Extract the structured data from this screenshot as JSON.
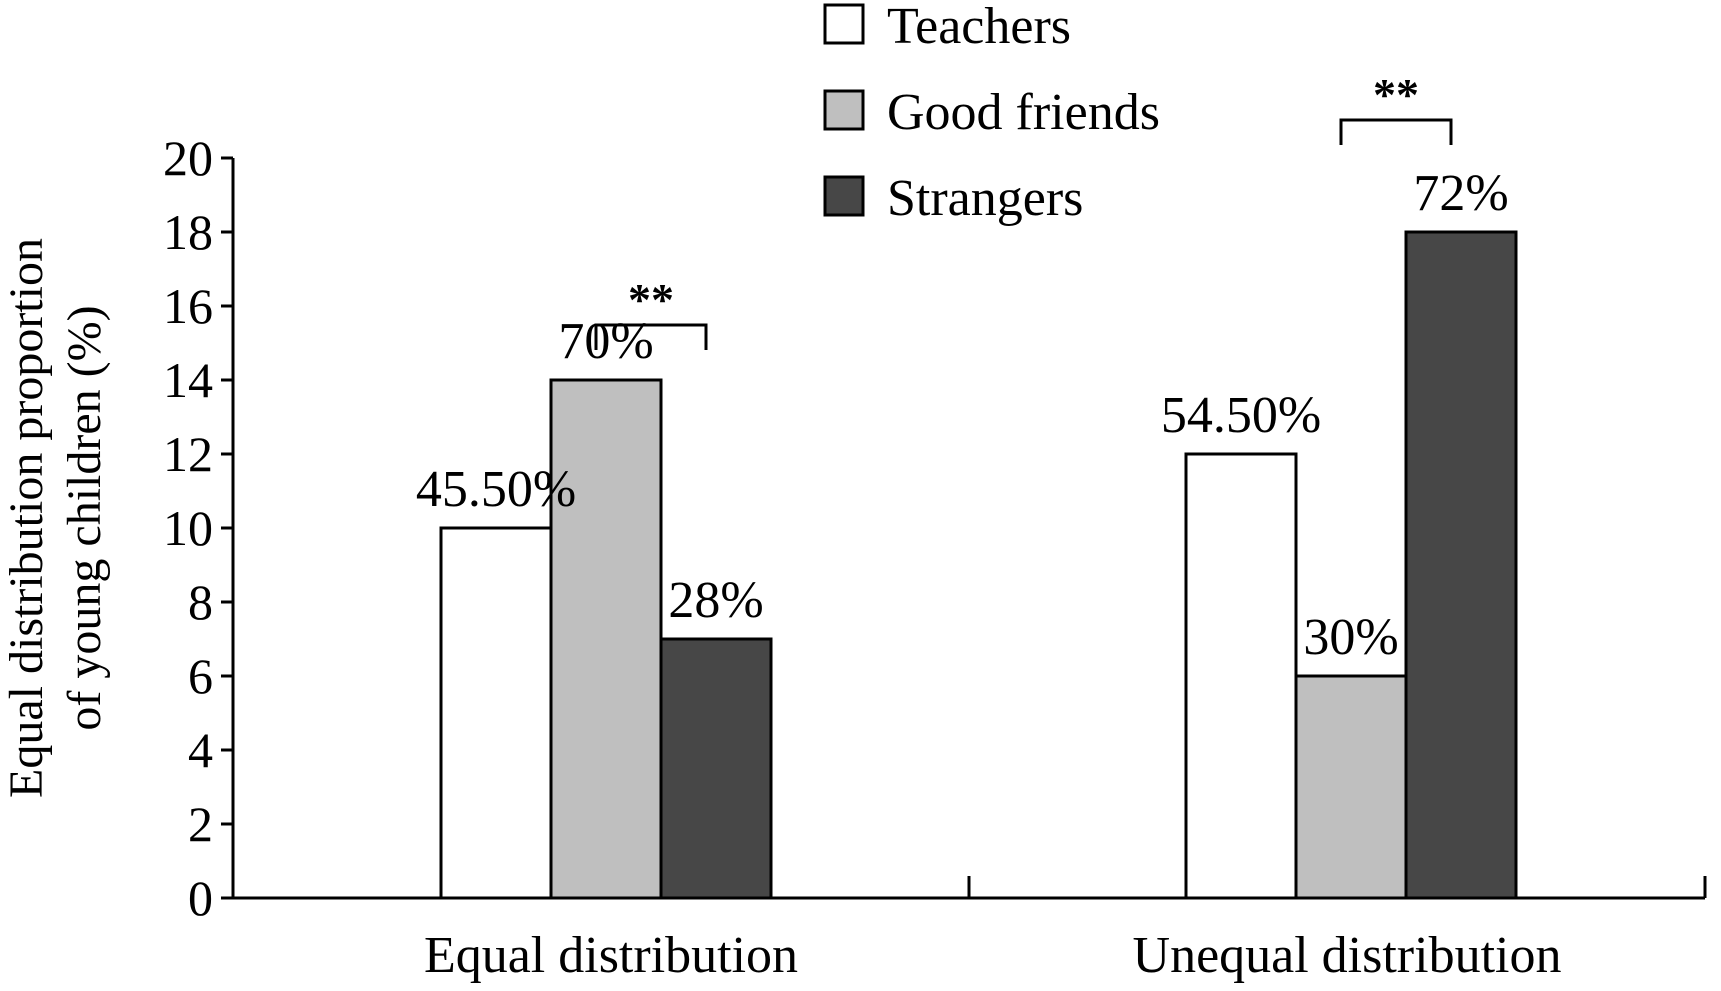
{
  "chart_data": {
    "type": "bar",
    "ylabel": "Equal distribution proportion of young children (%)",
    "ylabel_lines": [
      "Equal distribution proportion",
      "of young children (%)"
    ],
    "ylim": [
      0,
      20
    ],
    "yticks": [
      0,
      2,
      4,
      6,
      8,
      10,
      12,
      14,
      16,
      18,
      20
    ],
    "categories": [
      "Equal distribution",
      "Unequal distribution"
    ],
    "series": [
      {
        "name": "Teachers",
        "color": "#ffffff",
        "values": [
          10,
          12
        ],
        "labels": [
          "45.50%",
          "54.50%"
        ]
      },
      {
        "name": "Good friends",
        "color": "#bfbfbf",
        "values": [
          14,
          6
        ],
        "labels": [
          "70%",
          "30%"
        ]
      },
      {
        "name": "Strangers",
        "color": "#474747",
        "values": [
          7,
          18
        ],
        "labels": [
          "28%",
          "72%"
        ]
      }
    ],
    "legend": "top-center",
    "grid": false,
    "significance": [
      {
        "category": 0,
        "from_series": 1,
        "to_series": 2,
        "label": "**"
      },
      {
        "category": 1,
        "from_series": 1,
        "to_series": 2,
        "label": "**"
      }
    ]
  }
}
